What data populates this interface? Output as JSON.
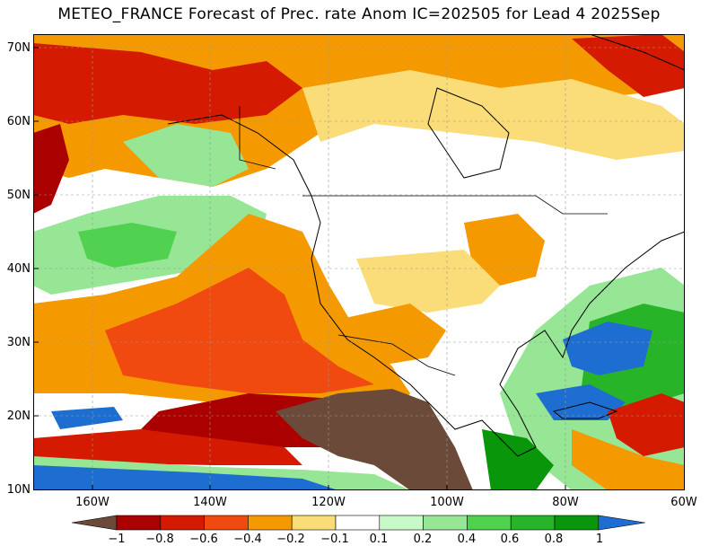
{
  "title": "METEO_FRANCE Forecast of Prec. rate Anom IC=202505 for Lead 4 2025Sep",
  "lat_ticks": [
    "70N",
    "60N",
    "50N",
    "40N",
    "30N",
    "20N",
    "10N"
  ],
  "lon_ticks": [
    "160W",
    "140W",
    "120W",
    "100W",
    "80W",
    "60W"
  ],
  "colorbar": {
    "labels": [
      "−1",
      "−0.8",
      "−0.6",
      "−0.4",
      "−0.2",
      "−0.1",
      "0.1",
      "0.2",
      "0.4",
      "0.6",
      "0.8",
      "1"
    ],
    "colors": {
      "below_min": "#6b4a3a",
      "c1": "#aa0000",
      "c2": "#d41a00",
      "c3": "#f04a10",
      "c4": "#f49a00",
      "c5": "#fadc78",
      "neutral": "#ffffff",
      "p1": "#c8fac8",
      "p2": "#96e696",
      "p3": "#50d250",
      "p4": "#28b428",
      "p5": "#0a960a",
      "above_max": "#1e6ed2"
    }
  }
}
